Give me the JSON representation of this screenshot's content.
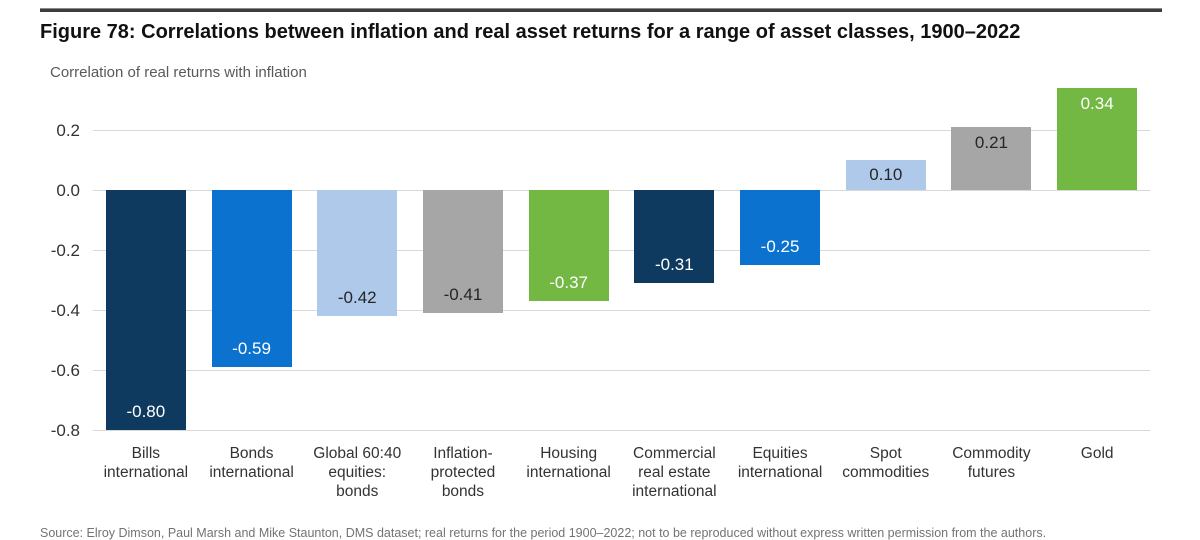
{
  "figure": {
    "title": "Figure 78: Correlations between inflation and real asset returns for a range of asset classes, 1900–2022",
    "subtitle": "Correlation of real returns with inflation",
    "source_note_partial": "Source: Elroy Dimson, Paul Marsh and Mike Staunton, DMS dataset; real returns for the period 1900–2022; not to be reproduced without express written permission from the authors."
  },
  "chart_data": {
    "type": "bar",
    "title": "Figure 78: Correlations between inflation and real asset returns for a range of asset classes, 1900–2022",
    "ylabel": "Correlation of real returns with inflation",
    "xlabel": "",
    "categories": [
      "Bills\ninternational",
      "Bonds\ninternational",
      "Global 60:40\nequities:\nbonds",
      "Inflation-\nprotected\nbonds",
      "Housing\ninternational",
      "Commercial\nreal estate\ninternational",
      "Equities\ninternational",
      "Spot\ncommodities",
      "Commodity\nfutures",
      "Gold"
    ],
    "values": [
      -0.8,
      -0.59,
      -0.42,
      -0.41,
      -0.37,
      -0.31,
      -0.25,
      0.1,
      0.21,
      0.34
    ],
    "value_labels": [
      "-0.80",
      "-0.59",
      "-0.42",
      "-0.41",
      "-0.37",
      "-0.31",
      "-0.25",
      "0.10",
      "0.21",
      "0.34"
    ],
    "bar_colors": [
      "#0f3a5f",
      "#0b73cf",
      "#aec9ea",
      "#a6a6a6",
      "#72b843",
      "#0f3a5f",
      "#0b73cf",
      "#aec9ea",
      "#a6a6a6",
      "#72b843"
    ],
    "label_text_colors": [
      "#ffffff",
      "#ffffff",
      "#262626",
      "#262626",
      "#ffffff",
      "#ffffff",
      "#ffffff",
      "#262626",
      "#262626",
      "#ffffff"
    ],
    "yticks": [
      "0.2",
      "0.0",
      "-0.2",
      "-0.4",
      "-0.6",
      "-0.8"
    ],
    "ytick_values": [
      0.2,
      0.0,
      -0.2,
      -0.4,
      -0.6,
      -0.8
    ],
    "ylim": [
      -0.8,
      0.36
    ],
    "grid": "horizontal",
    "legend": "none",
    "gridline_color": "#d9d9d9"
  }
}
